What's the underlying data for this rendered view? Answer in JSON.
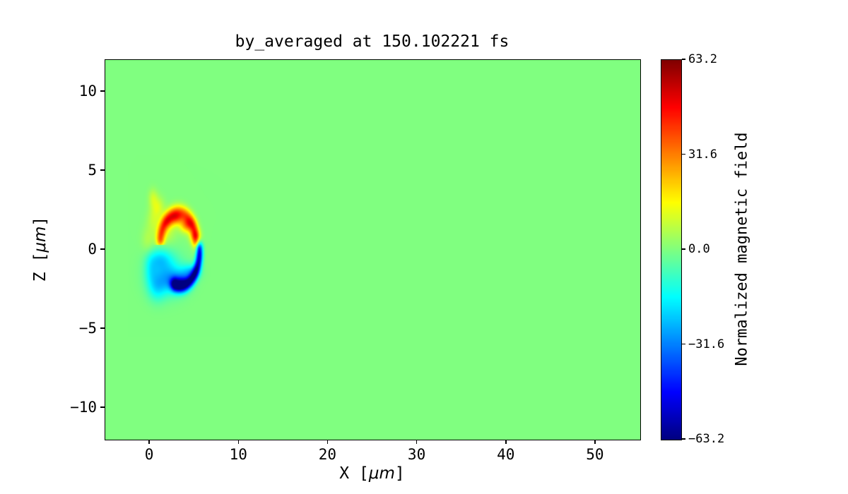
{
  "chart_data": {
    "type": "heatmap",
    "title": "by_averaged at 150.102221 fs",
    "xlabel_parts": {
      "pre": "X [",
      "math": "μm",
      "post": "]"
    },
    "ylabel_parts": {
      "pre": "Z [",
      "math": "μm",
      "post": "]"
    },
    "colorbar_label": "Normalized magnetic field",
    "colormap": "jet",
    "grid": false,
    "xlim": [
      -5,
      55
    ],
    "zlim": [
      -12,
      12
    ],
    "clim": [
      -63.2,
      63.2
    ],
    "background_value": 0.0,
    "x_ticks": {
      "values": [
        0,
        10,
        20,
        30,
        40,
        50
      ],
      "labels": [
        "0",
        "10",
        "20",
        "30",
        "40",
        "50"
      ]
    },
    "z_ticks": {
      "values": [
        -10,
        -5,
        0,
        5,
        10
      ],
      "labels": [
        "−10",
        "−5",
        "0",
        "5",
        "10"
      ]
    },
    "colorbar_ticks": {
      "values": [
        63.2,
        31.6,
        0.0,
        -31.6,
        -63.2
      ],
      "labels": [
        "63.2",
        "31.6",
        "0.0",
        "−31.6",
        "−63.2"
      ]
    },
    "features": {
      "arcs": [
        {
          "cx": 3.2,
          "cz": 0.3,
          "r": 2.05,
          "a0": 8,
          "a1": 168,
          "sigma": 0.33,
          "soft": 12,
          "amp": 34
        },
        {
          "cx": 3.4,
          "cz": -0.15,
          "r": 2.15,
          "a0": -104,
          "a1": 5,
          "sigma": 0.27,
          "soft": 10,
          "amp": -55
        }
      ],
      "blobs": [
        {
          "x": 4.15,
          "z": 1.55,
          "sx": 0.55,
          "sz": 0.33,
          "amp": 27
        },
        {
          "x": 2.95,
          "z": 2.0,
          "sx": 0.5,
          "sz": 0.3,
          "amp": 23
        },
        {
          "x": 5.0,
          "z": 0.85,
          "sx": 0.4,
          "sz": 0.3,
          "amp": 17
        },
        {
          "x": 2.1,
          "z": 1.75,
          "sx": 0.45,
          "sz": 0.3,
          "amp": 12
        },
        {
          "x": 0.9,
          "z": 2.7,
          "sx": 0.5,
          "sz": 0.45,
          "amp": 11
        },
        {
          "x": 0.35,
          "z": 3.3,
          "sx": 0.35,
          "sz": 0.4,
          "amp": 8
        },
        {
          "x": 1.7,
          "z": 1.15,
          "sx": 0.8,
          "sz": 0.55,
          "amp": 9
        },
        {
          "x": 0.4,
          "z": 1.9,
          "sx": 0.5,
          "sz": 0.5,
          "amp": 7
        },
        {
          "x": -0.2,
          "z": 0.6,
          "sx": 0.5,
          "sz": 0.6,
          "amp": 6
        },
        {
          "x": 1.8,
          "z": -1.5,
          "sx": 1.3,
          "sz": 0.85,
          "amp": -20
        },
        {
          "x": 3.0,
          "z": -2.05,
          "sx": 0.95,
          "sz": 0.5,
          "amp": -17
        },
        {
          "x": 0.8,
          "z": -2.4,
          "sx": 0.7,
          "sz": 0.6,
          "amp": -13
        },
        {
          "x": 1.1,
          "z": -0.55,
          "sx": 0.85,
          "sz": 0.45,
          "amp": -12
        },
        {
          "x": 0.1,
          "z": -1.2,
          "sx": 0.5,
          "sz": 0.7,
          "amp": -9
        },
        {
          "x": 4.55,
          "z": -1.4,
          "sx": 0.7,
          "sz": 0.35,
          "amp": -18
        },
        {
          "x": 3.6,
          "z": -1.95,
          "sx": 0.6,
          "sz": 0.3,
          "amp": -13
        }
      ]
    }
  }
}
